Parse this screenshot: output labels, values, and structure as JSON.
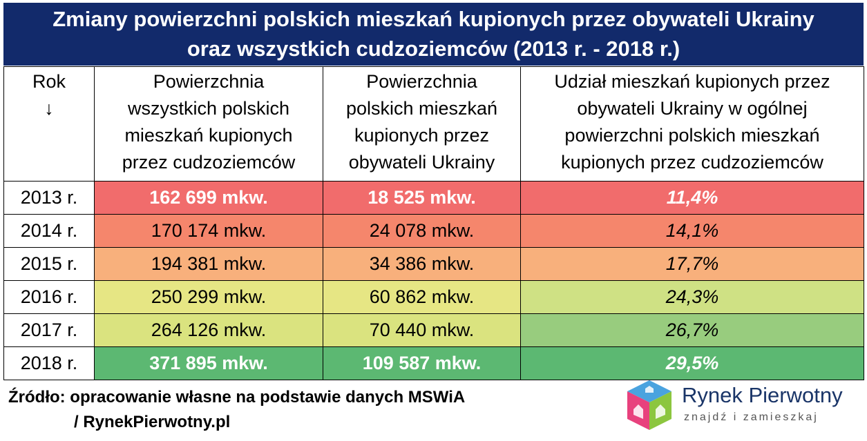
{
  "title_line1": "Zmiany powierzchni polskich mieszkań kupionych przez obywateli Ukrainy",
  "title_line2": "oraz wszystkich cudzoziemców (2013 r. - 2018 r.)",
  "headers": {
    "year_label": "Rok",
    "year_arrow": "↓",
    "col1": [
      "Powierzchnia",
      "wszystkich polskich",
      "mieszkań kupionych",
      "przez cudzoziemców"
    ],
    "col2": [
      "Powierzchnia",
      "polskich mieszkań",
      "kupionych przez",
      "obywateli Ukrainy"
    ],
    "col3": [
      "Udział mieszkań kupionych przez",
      "obywateli Ukrainy w ogólnej",
      "powierzchni polskich mieszkań",
      "kupionych przez cudzoziemców"
    ]
  },
  "rows": [
    {
      "year": "2013 r.",
      "all": "162 699 mkw.",
      "ukr": "18 525 mkw.",
      "share": "11,4%"
    },
    {
      "year": "2014 r.",
      "all": "170 174 mkw.",
      "ukr": "24 078 mkw.",
      "share": "14,1%"
    },
    {
      "year": "2015 r.",
      "all": "194 381 mkw.",
      "ukr": "34 386 mkw.",
      "share": "17,7%"
    },
    {
      "year": "2016 r.",
      "all": "250 299 mkw.",
      "ukr": "60 862 mkw.",
      "share": "24,3%"
    },
    {
      "year": "2017 r.",
      "all": "264 126 mkw.",
      "ukr": "70 440 mkw.",
      "share": "26,7%"
    },
    {
      "year": "2018 r.",
      "all": "371 895 mkw.",
      "ukr": "109 587 mkw.",
      "share": "29,5%"
    }
  ],
  "colors": {
    "title_bg": "#122a6b",
    "row_fills_cols12": [
      "#f16c6c",
      "#f5866c",
      "#f8b07c",
      "#e6e684",
      "#dae37f",
      "#5cb872"
    ],
    "row_fills_col3": [
      "#f16c6c",
      "#f5866c",
      "#f8b07c",
      "#cfe184",
      "#98cc7e",
      "#5cb872"
    ]
  },
  "source_line1": "Źródło: opracowanie własne na podstawie danych MSWiA",
  "source_line2": "/ RynekPierwotny.pl",
  "logo": {
    "name": "Rynek Pierwotny",
    "tagline": "znajdź i zamieszkaj",
    "icon": "house-cube-icon"
  },
  "chart_data": {
    "type": "table",
    "title": "Zmiany powierzchni polskich mieszkań kupionych przez obywateli Ukrainy oraz wszystkich cudzoziemców (2013 r. - 2018 r.)",
    "columns": [
      "Rok",
      "Powierzchnia wszystkich polskich mieszkań kupionych przez cudzoziemców",
      "Powierzchnia polskich mieszkań kupionych przez obywateli Ukrainy",
      "Udział mieszkań kupionych przez obywateli Ukrainy w ogólnej powierzchni polskich mieszkań kupionych przez cudzoziemców"
    ],
    "x": [
      2013,
      2014,
      2015,
      2016,
      2017,
      2018
    ],
    "series": [
      {
        "name": "Powierzchnia wszystkich polskich mieszkań kupionych przez cudzoziemców",
        "values": [
          162699,
          170174,
          194381,
          250299,
          264126,
          371895
        ]
      },
      {
        "name": "Powierzchnia polskich mieszkań kupionych przez obywateli Ukrainy",
        "values": [
          18525,
          24078,
          34386,
          60862,
          70440,
          109587
        ]
      },
      {
        "name": "Udział mieszkań kupionych przez obywateli Ukrainy w ogólnej powierzchni polskich mieszkań kupionych przez cudzoziemców",
        "values": [
          11.4,
          14.1,
          17.7,
          24.3,
          26.7,
          29.5
        ]
      }
    ]
  }
}
